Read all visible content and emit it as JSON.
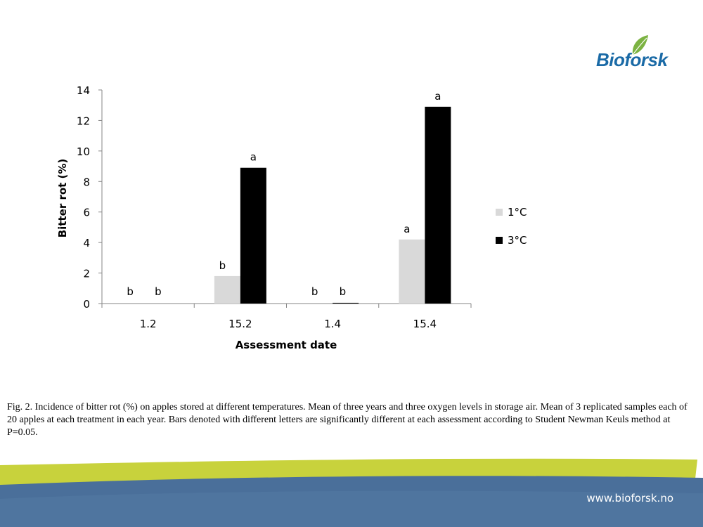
{
  "logo": {
    "text": "Bioforsk",
    "icon": "leaf-icon",
    "color": "#1a6aa6",
    "leaf_color": "#7cb342"
  },
  "chart_data": {
    "type": "bar",
    "categories": [
      "1.2",
      "15.2",
      "1.4",
      "15.4"
    ],
    "series": [
      {
        "name": "1°C",
        "color": "#d9d9d9",
        "values": [
          0,
          1.8,
          0,
          4.2
        ],
        "labels": [
          "b",
          "b",
          "b",
          "a"
        ]
      },
      {
        "name": "3°C",
        "color": "#000000",
        "values": [
          0,
          8.9,
          0.05,
          12.9
        ],
        "labels": [
          "b",
          "a",
          "b",
          "a"
        ]
      }
    ],
    "xlabel": "Assessment date",
    "ylabel": "Bitter rot (%)",
    "ylim": [
      0,
      14
    ],
    "yticks": [
      "0",
      "2",
      "4",
      "6",
      "8",
      "10",
      "12",
      "14"
    ],
    "grid": false,
    "legend_position": "right"
  },
  "caption": "Fig. 2. Incidence of bitter rot (%) on apples stored at different temperatures. Mean of three years and three oxygen levels in storage air. Mean of 3 replicated samples each of 20 apples at each treatment in each year. Bars denoted with different letters are significantly different at each assessment according to Student Newman Keuls method at P=0.05.",
  "footer": {
    "url": "www.bioforsk.no",
    "band_color": "#c8d23c",
    "background_color": "#4a6f9a"
  }
}
